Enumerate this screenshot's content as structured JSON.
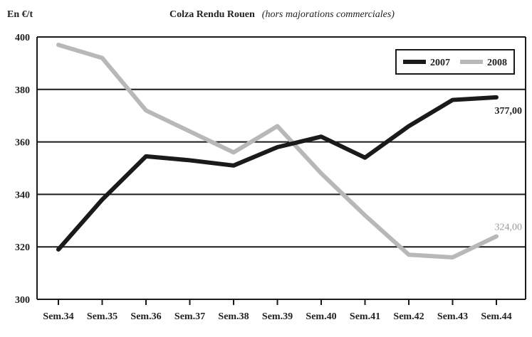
{
  "chart_data": {
    "type": "line",
    "unit_label": "En €/t",
    "title": "Colza Rendu Rouen",
    "subtitle": "(hors majorations commerciales)",
    "categories": [
      "Sem.34",
      "Sem.35",
      "Sem.36",
      "Sem.37",
      "Sem.38",
      "Sem.39",
      "Sem.40",
      "Sem.41",
      "Sem.42",
      "Sem.43",
      "Sem.44"
    ],
    "ylim": [
      300,
      400
    ],
    "yticks": [
      300,
      320,
      340,
      360,
      380,
      400
    ],
    "grid": true,
    "legend_position": "top-right",
    "series": [
      {
        "name": "2007",
        "color": "#1a1a1a",
        "values": [
          319,
          338,
          354.5,
          353,
          351,
          358,
          362,
          354,
          366,
          376,
          377
        ],
        "end_label": "377,00"
      },
      {
        "name": "2008",
        "color": "#b8b8b8",
        "values": [
          397,
          392,
          372,
          364,
          356,
          366,
          348,
          332,
          317,
          316,
          324
        ],
        "end_label": "324,00"
      }
    ]
  }
}
